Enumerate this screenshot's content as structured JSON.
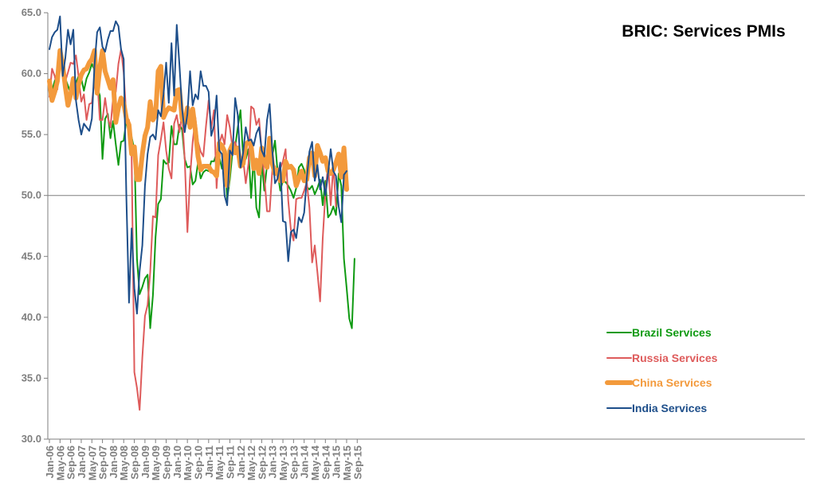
{
  "chart_data": {
    "type": "line",
    "title": "BRIC: Services PMIs",
    "xlabel": "",
    "ylabel": "",
    "ylim": [
      30.0,
      65.0
    ],
    "y_ticks": [
      "30.0",
      "35.0",
      "40.0",
      "45.0",
      "50.0",
      "55.0",
      "60.0",
      "65.0"
    ],
    "reference_line": 50.0,
    "x_start": "Jan-06",
    "x_tick_labels": [
      "Jan-06",
      "May-06",
      "Sep-06",
      "Jan-07",
      "May-07",
      "Sep-07",
      "Jan-08",
      "May-08",
      "Sep-08",
      "Jan-09",
      "May-09",
      "Sep-09",
      "Jan-10",
      "May-10",
      "Sep-10",
      "Jan-11",
      "May-11",
      "Sep-11",
      "Jan-12",
      "May-12",
      "Sep-12",
      "Jan-13",
      "May-13",
      "Sep-13",
      "Jan-14",
      "May-14",
      "Sep-14",
      "Jan-15",
      "May-15",
      "Sep-15"
    ],
    "legend_position": "lower-right",
    "series": [
      {
        "name": "Brazil Services",
        "color": "#0f9a12",
        "values": [
          59.0,
          58.6,
          59.4,
          60.0,
          61.0,
          60.1,
          59.6,
          59.0,
          58.4,
          58.8,
          59.2,
          59.8,
          59.6,
          58.6,
          59.6,
          60.1,
          60.8,
          60.3,
          58.9,
          58.2,
          53.0,
          56.3,
          56.7,
          54.7,
          56.1,
          54.2,
          52.5,
          54.4,
          54.5,
          56.2,
          55.1,
          54.8,
          53.7,
          44.8,
          41.9,
          42.5,
          43.2,
          43.5,
          39.1,
          41.8,
          46.6,
          49.3,
          49.7,
          52.9,
          52.6,
          52.7,
          55.7,
          54.2,
          54.2,
          55.8,
          55.4,
          53.0,
          52.3,
          52.4,
          50.9,
          51.2,
          52.7,
          51.4,
          51.9,
          52.1,
          52.0,
          52.8,
          52.8,
          53.5,
          53.2,
          52.2,
          53.5,
          49.7,
          51.3,
          53.6,
          54.0,
          55.6,
          57.0,
          53.1,
          53.0,
          53.8,
          49.8,
          53.2,
          49.0,
          48.2,
          52.8,
          50.4,
          52.5,
          53.6,
          53.2,
          54.5,
          51.9,
          50.4,
          51.2,
          51.1,
          50.8,
          50.4,
          49.8,
          50.6,
          52.3,
          52.6,
          52.1,
          50.7,
          50.5,
          50.8,
          50.1,
          50.6,
          51.3,
          49.2,
          51.2,
          48.2,
          48.5,
          49.1,
          48.4,
          51.8,
          50.8,
          44.8,
          42.4,
          39.9,
          39.1,
          44.8
        ]
      },
      {
        "name": "Russia Services",
        "color": "#de5b5b",
        "values": [
          58.1,
          60.4,
          59.8,
          58.7,
          61.6,
          60.0,
          59.4,
          60.1,
          60.9,
          60.8,
          61.5,
          59.8,
          57.7,
          58.3,
          56.2,
          57.5,
          57.6,
          59.5,
          59.7,
          56.2,
          56.2,
          58.0,
          56.4,
          55.6,
          58.0,
          58.5,
          60.8,
          62.0,
          60.1,
          56.4,
          56.2,
          53.2,
          35.5,
          34.2,
          32.4,
          36.7,
          40.1,
          41.0,
          43.7,
          48.3,
          48.2,
          53.3,
          54.6,
          56.0,
          53.7,
          52.2,
          51.4,
          55.9,
          56.6,
          55.2,
          56.7,
          53.0,
          47.0,
          51.5,
          54.4,
          56.4,
          54.4,
          53.6,
          53.2,
          55.7,
          57.8,
          55.5,
          57.0,
          50.6,
          54.2,
          55.0,
          54.2,
          56.6,
          55.6,
          53.9,
          54.4,
          53.5,
          53.1,
          53.0,
          51.0,
          52.6,
          57.3,
          57.1,
          55.8,
          56.3,
          53.6,
          51.6,
          48.7,
          48.7,
          52.1,
          52.4,
          51.4,
          52.2,
          52.8,
          53.8,
          49.6,
          47.2,
          46.3,
          49.7,
          49.8,
          49.8,
          50.4,
          51.1,
          49.0,
          44.5,
          45.9,
          43.7,
          41.3,
          46.5,
          50.1,
          52.6,
          49.2,
          52.5,
          49.1
        ],
        "y_padded": 1
      },
      {
        "name": "China Services",
        "color": "#f39a3c",
        "values": [
          59.4,
          57.8,
          58.5,
          59.4,
          61.9,
          60.7,
          58.9,
          57.4,
          58.3,
          59.6,
          58.0,
          59.1,
          59.9,
          60.3,
          60.4,
          60.9,
          61.2,
          61.9,
          58.4,
          60.5,
          61.9,
          60.2,
          59.5,
          58.8,
          59.5,
          56.0,
          57.2,
          58.0,
          57.6,
          56.3,
          55.8,
          53.4,
          54.0,
          51.3,
          51.3,
          53.4,
          54.9,
          55.6,
          57.7,
          56.2,
          56.6,
          60.2,
          60.6,
          56.4,
          56.9,
          57.2,
          57.1,
          57.0,
          58.6,
          58.7,
          56.3,
          55.9,
          57.2,
          55.6,
          57.1,
          55.3,
          53.2,
          52.1,
          52.4,
          52.4,
          52.4,
          52.0,
          51.9,
          51.6,
          54.3,
          54.1,
          53.6,
          50.8,
          53.7,
          54.2,
          53.5,
          53.9,
          52.4,
          52.6,
          54.2,
          54.4,
          54.1,
          52.2,
          52.9,
          51.8,
          53.9,
          52.8,
          52.3,
          54.7,
          52.6,
          51.8,
          52.1,
          51.2,
          51.2,
          52.8,
          52.3,
          52.4,
          52.1,
          50.8,
          51.4,
          52.0,
          51.2,
          51.3,
          53.1,
          53.5,
          51.6,
          54.1,
          53.5,
          52.8,
          53.1,
          52.0,
          51.8,
          52.1,
          52.7,
          53.4,
          51.5,
          53.9,
          50.5
        ],
        "y_padded": 2
      },
      {
        "name": "India Services",
        "color": "#1d4e8a",
        "values": [
          62.0,
          63.0,
          63.4,
          63.6,
          64.7,
          59.8,
          61.3,
          63.6,
          62.4,
          63.6,
          57.8,
          56.2,
          55.0,
          55.9,
          55.6,
          55.3,
          56.3,
          60.7,
          63.4,
          63.8,
          62.2,
          61.8,
          62.8,
          63.5,
          63.5,
          64.3,
          63.9,
          62.0,
          61.2,
          49.8,
          41.2,
          47.3,
          42.4,
          40.3,
          43.8,
          45.9,
          50.8,
          53.4,
          54.8,
          55.0,
          54.6,
          57.0,
          56.5,
          58.3,
          60.9,
          57.6,
          62.5,
          58.2,
          64.0,
          60.7,
          57.1,
          55.2,
          56.7,
          60.2,
          57.4,
          58.3,
          57.9,
          60.2,
          59.0,
          59.0,
          58.5,
          54.9,
          55.7,
          58.2,
          53.7,
          53.4,
          50.0,
          49.2,
          53.7,
          53.3,
          58.0,
          56.6,
          52.3,
          53.5,
          55.6,
          54.5,
          54.6,
          54.1,
          55.1,
          55.6,
          53.7,
          53.2,
          56.2,
          57.5,
          53.7,
          51.0,
          51.4,
          52.7,
          47.9,
          47.8,
          44.6,
          47.0,
          47.2,
          46.5,
          48.2,
          47.8,
          48.6,
          51.4,
          53.6,
          54.4,
          51.2,
          52.5,
          50.5,
          51.5,
          50.0,
          51.8,
          53.8,
          52.0,
          51.6,
          49.1,
          47.8,
          51.7,
          52.0
        ]
      }
    ]
  }
}
